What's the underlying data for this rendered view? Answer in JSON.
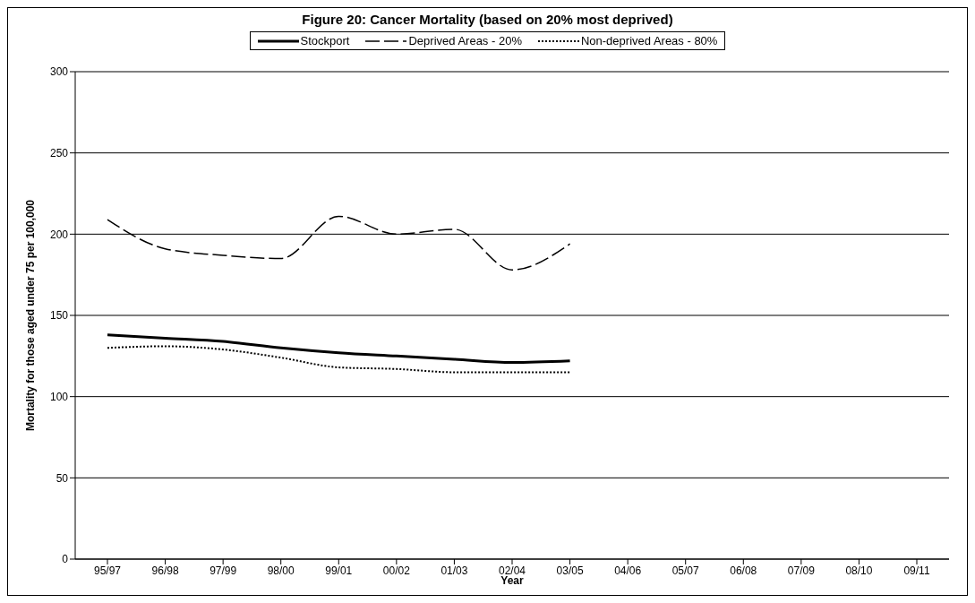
{
  "chart_data": {
    "type": "line",
    "title": "Figure 20: Cancer Mortality (based on 20% most deprived)",
    "xlabel": "Year",
    "ylabel": "Mortality for those aged under 75 per 100,000",
    "categories": [
      "95/97",
      "96/98",
      "97/99",
      "98/00",
      "99/01",
      "00/02",
      "01/03",
      "02/04",
      "03/05",
      "04/06",
      "05/07",
      "06/08",
      "07/09",
      "08/10",
      "09/11"
    ],
    "series": [
      {
        "name": "Stockport",
        "color": "#000000",
        "line_style": "solid",
        "values": [
          138,
          136,
          134,
          130,
          127,
          125,
          123,
          121,
          122,
          null,
          null,
          null,
          null,
          null,
          null
        ]
      },
      {
        "name": "Deprived Areas - 20%",
        "color": "#000000",
        "line_style": "dashed",
        "values": [
          209,
          191,
          187,
          185,
          211,
          200,
          203,
          178,
          194,
          null,
          null,
          null,
          null,
          null,
          null
        ]
      },
      {
        "name": "Non-deprived Areas - 80%",
        "color": "#000000",
        "line_style": "dotted",
        "values": [
          130,
          131,
          129,
          124,
          118,
          117,
          115,
          115,
          115,
          null,
          null,
          null,
          null,
          null,
          null
        ]
      }
    ],
    "ylim": [
      0,
      300
    ],
    "yticks": [
      0,
      50,
      100,
      150,
      200,
      250,
      300
    ],
    "grid": "y",
    "legend": "top",
    "marker": "none"
  }
}
